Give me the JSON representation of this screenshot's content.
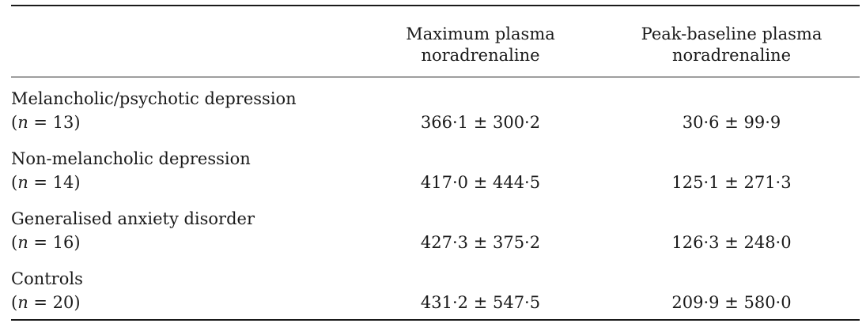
{
  "table": {
    "headers": [
      {
        "line1": "Maximum plasma",
        "line2": "noradrenaline"
      },
      {
        "line1": "Peak-baseline plasma",
        "line2": "noradrenaline"
      }
    ],
    "rows": [
      {
        "group": "Melancholic/psychotic depression",
        "n_label": "n",
        "n_rest": " = 13)",
        "max": "366·1 ± 300·2",
        "peak": "30·6 ± 99·9"
      },
      {
        "group": "Non-melancholic depression",
        "n_label": "n",
        "n_rest": " = 14)",
        "max": "417·0 ± 444·5",
        "peak": "125·1 ± 271·3"
      },
      {
        "group": "Generalised anxiety disorder",
        "n_label": "n",
        "n_rest": " = 16)",
        "max": "427·3 ± 375·2",
        "peak": "126·3 ± 248·0"
      },
      {
        "group": "Controls",
        "n_label": "n",
        "n_rest": " = 20)",
        "max": "431·2 ± 547·5",
        "peak": "209·9 ± 580·0"
      }
    ]
  }
}
